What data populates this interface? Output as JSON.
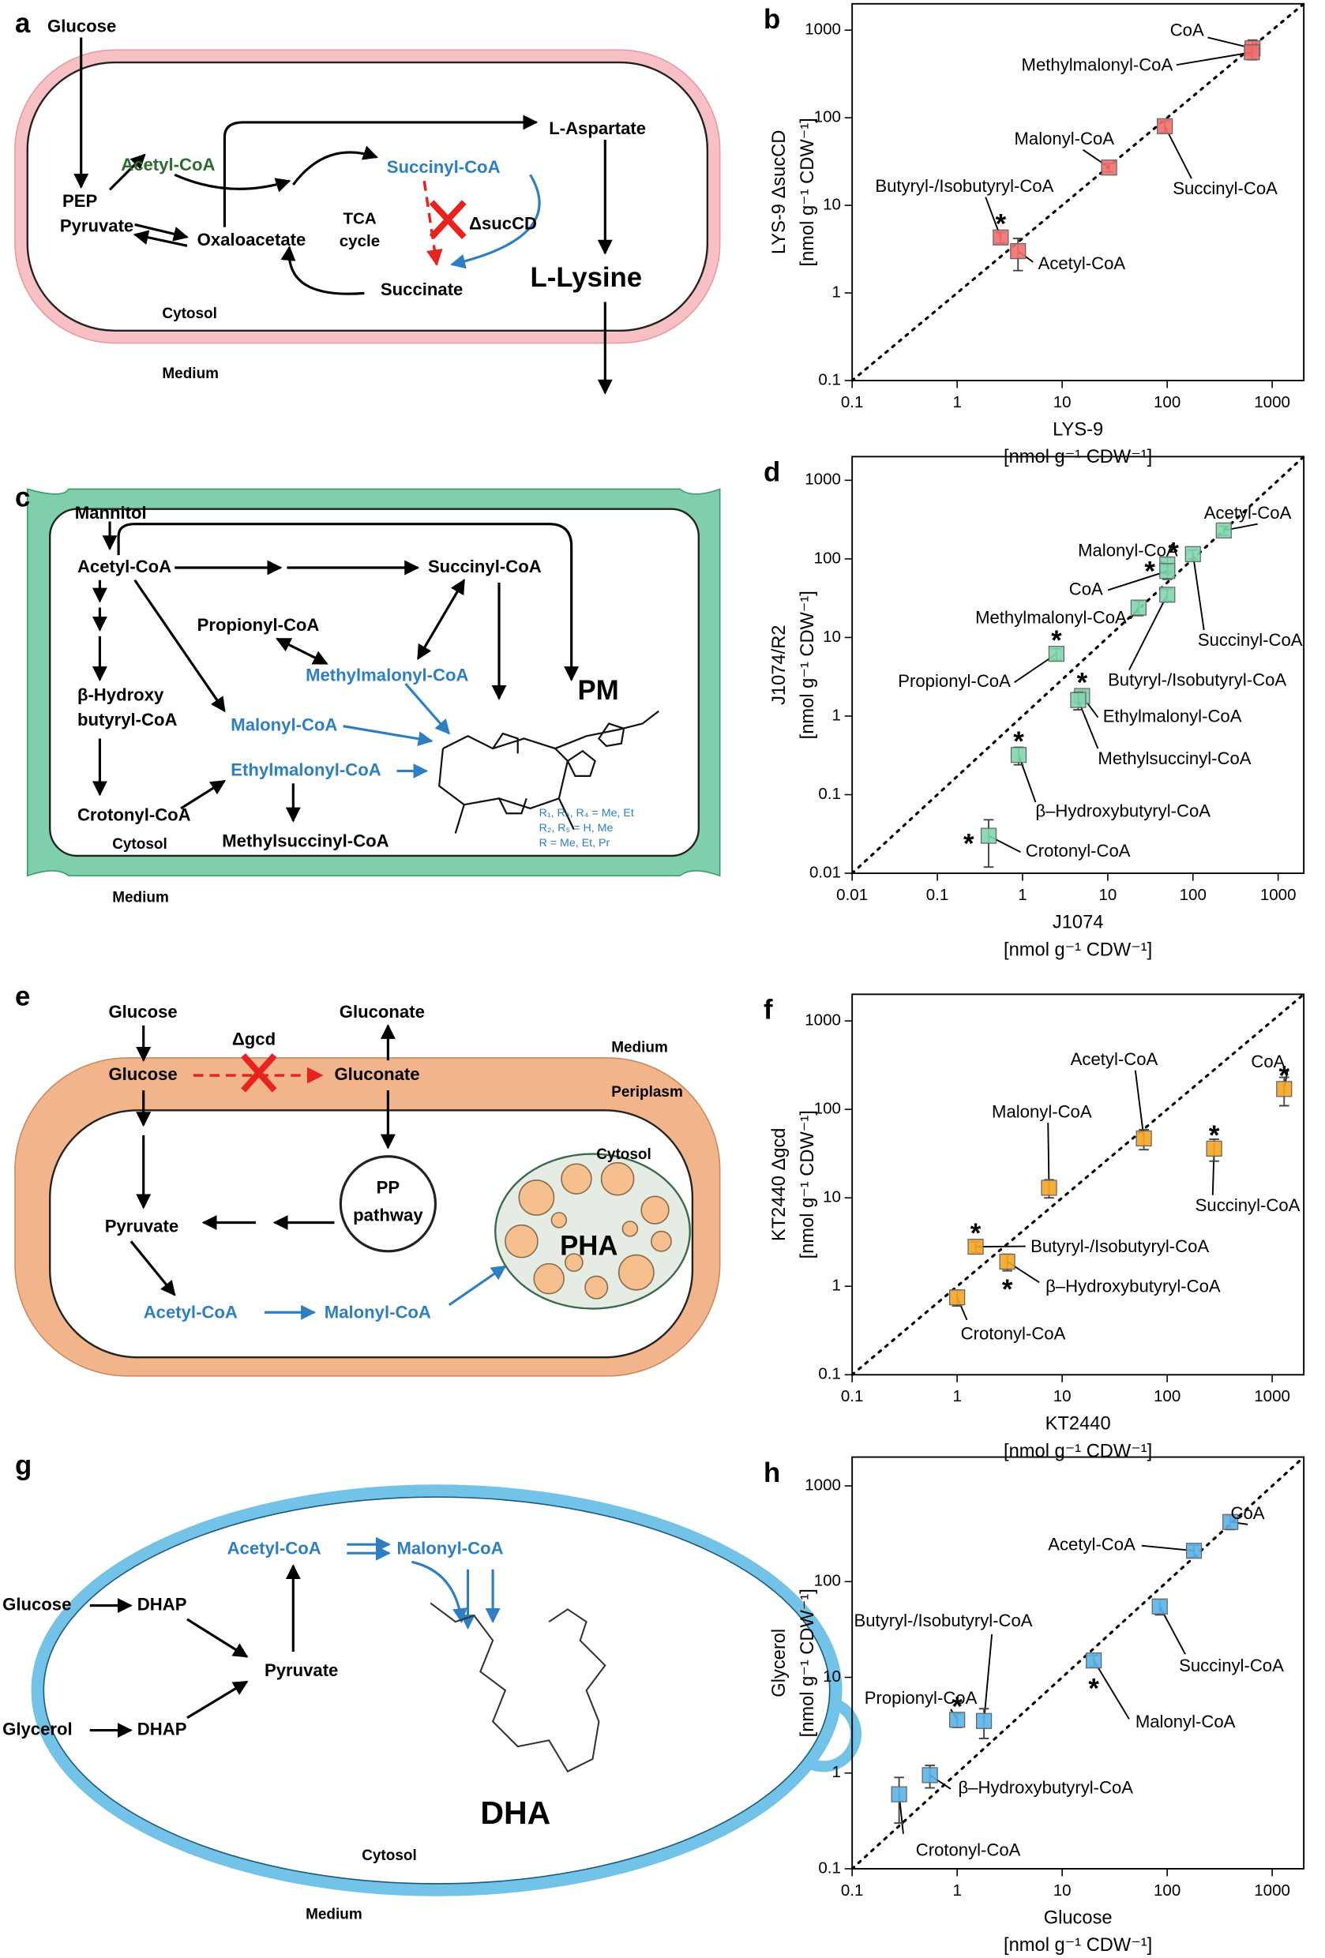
{
  "diagrams": {
    "a": [
      "a",
      "Glucose",
      "PEP",
      "Pyruvate",
      "Acetyl-CoA",
      "Oxaloacetate",
      "TCA",
      "cycle",
      "Succinyl-CoA",
      "ΔsucCD",
      "Succinate",
      "L-Aspartate",
      "L-Lysine",
      "Cytosol",
      "Medium"
    ],
    "c": [
      "c",
      "Mannitol",
      "Acetyl-CoA",
      "Propionyl-CoA",
      "Succinyl-CoA",
      "Methylmalonyl-CoA",
      "β-Hydroxy",
      "butyryl-CoA",
      "Malonyl-CoA",
      "Ethylmalonyl-CoA",
      "Crotonyl-CoA",
      "Methylsuccinyl-CoA",
      "PM",
      "R₁, R₃, R₄ = Me, Et",
      "R₂, R₅ = H, Me",
      "R = Me, Et, Pr",
      "Cytosol",
      "Medium"
    ],
    "e": [
      "e",
      "Glucose",
      "Gluconate",
      "Medium",
      "Δgcd",
      "Glucose",
      "Gluconate",
      "Periplasm",
      "Cytosol",
      "PP",
      "pathway",
      "Pyruvate",
      "Acetyl-CoA",
      "Malonyl-CoA",
      "PHA"
    ],
    "g": [
      "g",
      "Acetyl-CoA",
      "Malonyl-CoA",
      "Glucose",
      "DHAP",
      "Pyruvate",
      "Glycerol",
      "DHAP",
      "DHA",
      "Cytosol",
      "Medium"
    ]
  },
  "chart_data": [
    {
      "type": "scatter",
      "panel": "b",
      "x_label": "LYS-9",
      "x_unit": "[nmol g⁻¹ CDW⁻¹]",
      "y_label": "LYS-9 ΔsucCD",
      "y_unit": "[nmol g⁻¹ CDW⁻¹]",
      "log_x": true,
      "log_y": true,
      "diagonal": true,
      "color": "#f26e6e",
      "xlim": [
        0.1,
        2000
      ],
      "ylim": [
        0.1,
        2000
      ],
      "xticks": [
        0.1,
        1,
        10,
        100,
        1000
      ],
      "yticks": [
        0.1,
        1,
        10,
        100,
        1000
      ],
      "labels": [
        "CoA",
        "Methylmalonyl-CoA",
        "Malonyl-CoA",
        "Succinyl-CoA",
        "Butyryl-/Isobutyryl-CoA",
        "Acetyl-CoA"
      ],
      "x": [
        650,
        640,
        28,
        95,
        2.6,
        3.8
      ],
      "values": [
        620,
        560,
        27,
        80,
        4.3,
        3.0
      ],
      "yerr": [
        150,
        100,
        3,
        12,
        0.6,
        1.2
      ],
      "markers": [
        null,
        null,
        null,
        null,
        "*",
        null
      ]
    },
    {
      "type": "scatter",
      "panel": "d",
      "x_label": "J1074",
      "x_unit": "[nmol g⁻¹ CDW⁻¹]",
      "y_label": "J1074/R2",
      "y_unit": "[nmol g⁻¹ CDW⁻¹]",
      "log_x": true,
      "log_y": true,
      "diagonal": true,
      "color": "#7fd6ae",
      "xlim": [
        0.01,
        2000
      ],
      "ylim": [
        0.01,
        2000
      ],
      "xticks": [
        0.01,
        0.1,
        1,
        10,
        100,
        1000
      ],
      "yticks": [
        0.01,
        0.1,
        1,
        10,
        100,
        1000
      ],
      "labels": [
        "Acetyl-CoA",
        "Malonyl-CoA",
        "CoA",
        "Succinyl-CoA",
        "Methylmalonyl-CoA",
        "Butyryl-/Isobutyryl-CoA",
        "Propionyl-CoA",
        "Ethylmalonyl-CoA",
        "Methylsuccinyl-CoA",
        "β–Hydroxybutyryl-CoA",
        "Crotonyl-CoA"
      ],
      "x": [
        230,
        50,
        50,
        100,
        23,
        50,
        2.5,
        5,
        4.5,
        0.9,
        0.4
      ],
      "values": [
        230,
        85,
        70,
        115,
        24,
        35,
        6.2,
        1.8,
        1.6,
        0.32,
        0.03
      ],
      "yerr": [
        30,
        20,
        15,
        15,
        5,
        6,
        1,
        0.3,
        0.4,
        0.08,
        0.018
      ],
      "markers": [
        null,
        "*",
        "*",
        null,
        null,
        null,
        "*",
        "*",
        null,
        "*",
        "*"
      ]
    },
    {
      "type": "scatter",
      "panel": "f",
      "x_label": "KT2440",
      "x_unit": "[nmol g⁻¹ CDW⁻¹]",
      "y_label": "KT2440 Δgcd",
      "y_unit": "[nmol g⁻¹ CDW⁻¹]",
      "log_x": true,
      "log_y": true,
      "diagonal": true,
      "color": "#f5a524",
      "xlim": [
        0.1,
        2000
      ],
      "ylim": [
        0.1,
        2000
      ],
      "xticks": [
        0.1,
        1,
        10,
        100,
        1000
      ],
      "yticks": [
        0.1,
        1,
        10,
        100,
        1000
      ],
      "labels": [
        "CoA",
        "Acetyl-CoA",
        "Malonyl-CoA",
        "Succinyl-CoA",
        "Butyryl-/Isobutyryl-CoA",
        "β–Hydroxybutyryl-CoA",
        "Crotonyl-CoA"
      ],
      "x": [
        1300,
        60,
        7.5,
        280,
        1.5,
        3,
        1.0
      ],
      "values": [
        170,
        47,
        13,
        36,
        2.8,
        1.9,
        0.75
      ],
      "yerr": [
        60,
        12,
        3,
        10,
        0.4,
        0.4,
        0.15
      ],
      "markers": [
        "*",
        null,
        null,
        "*",
        "*",
        "*",
        null
      ]
    },
    {
      "type": "scatter",
      "panel": "h",
      "x_label": "Glucose",
      "x_unit": "[nmol g⁻¹ CDW⁻¹]",
      "y_label": "Glycerol",
      "y_unit": "[nmol g⁻¹ CDW⁻¹]",
      "log_x": true,
      "log_y": true,
      "diagonal": true,
      "color": "#5ab4e8",
      "xlim": [
        0.1,
        2000
      ],
      "ylim": [
        0.1,
        2000
      ],
      "xticks": [
        0.1,
        1,
        10,
        100,
        1000
      ],
      "yticks": [
        0.1,
        1,
        10,
        100,
        1000
      ],
      "labels": [
        "CoA",
        "Acetyl-CoA",
        "Succinyl-CoA",
        "Malonyl-CoA",
        "Butyryl-/Isobutyryl-CoA",
        "Propionyl-CoA",
        "β–Hydroxybutyryl-CoA",
        "Crotonyl-CoA"
      ],
      "x": [
        400,
        180,
        85,
        20,
        1.8,
        1.0,
        0.55,
        0.28
      ],
      "values": [
        420,
        210,
        55,
        15,
        3.5,
        3.6,
        0.95,
        0.6
      ],
      "yerr": [
        70,
        30,
        10,
        2,
        1.2,
        0.6,
        0.25,
        0.3
      ],
      "markers": [
        null,
        null,
        null,
        "*",
        null,
        "*",
        null,
        null
      ]
    }
  ]
}
